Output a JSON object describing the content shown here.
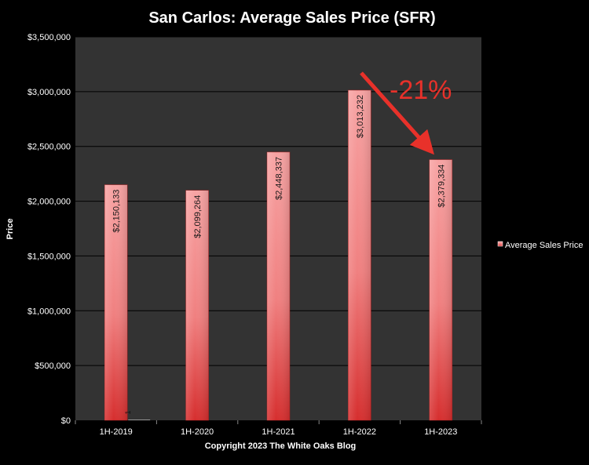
{
  "chart_data": {
    "type": "bar",
    "title": "San Carlos: Average Sales Price (SFR)",
    "subtitle": "Copyright 2023 The White  Oaks Blog",
    "xlabel": "",
    "ylabel": "Price",
    "categories": [
      "1H-2019",
      "1H-2020",
      "1H-2021",
      "1H-2022",
      "1H-2023"
    ],
    "series": [
      {
        "name": "Average Sales Price",
        "values": [
          2150133,
          2099264,
          2448337,
          3013232,
          2379334
        ],
        "data_labels": [
          "$2,150,133",
          "$2,099,264",
          "$2,448,337",
          "$3,013,232",
          "$2,379,334"
        ]
      }
    ],
    "ylim": [
      0,
      3500000
    ],
    "yticks": [
      {
        "value": 0,
        "label": "$0"
      },
      {
        "value": 500000,
        "label": "$500,000"
      },
      {
        "value": 1000000,
        "label": "$1,000,000"
      },
      {
        "value": 1500000,
        "label": "$1,500,000"
      },
      {
        "value": 2000000,
        "label": "$2,000,000"
      },
      {
        "value": 2500000,
        "label": "$2,500,000"
      },
      {
        "value": 3000000,
        "label": "$3,000,000"
      },
      {
        "value": 3500000,
        "label": "$3,500,000"
      }
    ],
    "grid": true,
    "legend_position": "right",
    "annotations": [
      {
        "text": "-21%",
        "type": "arrow",
        "from_category": "1H-2022",
        "to_category": "1H-2023",
        "color": "#e8312a"
      },
      {
        "text": "1",
        "type": "label",
        "category": "1H-2019"
      }
    ],
    "colors": {
      "background": "#000000",
      "plot_area": "#333333",
      "bar_top": "#f7a3a3",
      "bar_bottom": "#d62e2e",
      "gridline": "#000000",
      "annotation": "#e8312a"
    }
  }
}
